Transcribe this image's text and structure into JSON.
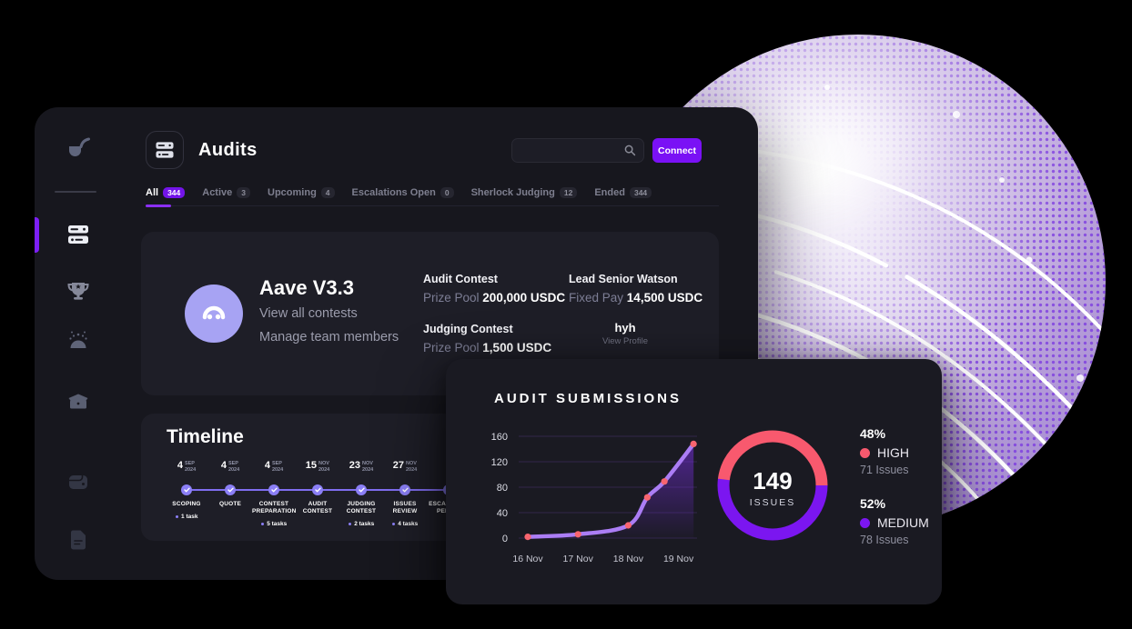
{
  "header": {
    "title": "Audits",
    "connect_label": "Connect",
    "search_placeholder": ""
  },
  "sidebar": {
    "items": [
      "pipe-logo",
      "audits",
      "trophy",
      "community",
      "toolbox",
      "wallet",
      "document"
    ]
  },
  "tabs": [
    {
      "label": "All",
      "count": "344"
    },
    {
      "label": "Active",
      "count": "3"
    },
    {
      "label": "Upcoming",
      "count": "4"
    },
    {
      "label": "Escalations Open",
      "count": "0"
    },
    {
      "label": "Sherlock Judging",
      "count": "12"
    },
    {
      "label": "Ended",
      "count": "344"
    }
  ],
  "project": {
    "name": "Aave V3.3",
    "link_contests": "View all contests",
    "link_members": "Manage team members",
    "audit_contest_title": "Audit Contest",
    "audit_prize_label": "Prize Pool",
    "audit_prize_value": "200,000 USDC",
    "judging_contest_title": "Judging Contest",
    "judging_prize_label": "Prize Pool",
    "judging_prize_value": "1,500 USDC",
    "watson_title": "Lead Senior Watson",
    "watson_pay_label": "Fixed Pay",
    "watson_pay_value": "14,500 USDC",
    "watson_name": "hyh",
    "watson_link": "View Profile"
  },
  "timeline": {
    "title": "Timeline",
    "milestones": [
      {
        "day": "4",
        "month": "SEP",
        "year": "2024",
        "label": "SCOPING",
        "tasks": "1 task"
      },
      {
        "day": "4",
        "month": "SEP",
        "year": "2024",
        "label": "QUOTE",
        "tasks": ""
      },
      {
        "day": "4",
        "month": "SEP",
        "year": "2024",
        "label": "CONTEST PREPARATION",
        "tasks": "5 tasks"
      },
      {
        "day": "15",
        "month": "NOV",
        "year": "2024",
        "label": "AUDIT CONTEST",
        "tasks": ""
      },
      {
        "day": "23",
        "month": "NOV",
        "year": "2024",
        "label": "JUDGING CONTEST",
        "tasks": "2 tasks"
      },
      {
        "day": "27",
        "month": "NOV",
        "year": "2024",
        "label": "ISSUES REVIEW",
        "tasks": "4 tasks"
      },
      {
        "day": "",
        "month": "",
        "year": "",
        "label": "ESCALATION PERIOD",
        "tasks": ""
      }
    ]
  },
  "submissions": {
    "title": "AUDIT SUBMISSIONS"
  },
  "chart_data": [
    {
      "type": "area",
      "title": "AUDIT SUBMISSIONS",
      "x_unit": "days from 16 Nov",
      "x": [
        0,
        1,
        2,
        2.38,
        2.72,
        3.3
      ],
      "values": [
        2,
        6,
        20,
        64,
        89,
        148
      ],
      "xtick_labels": [
        "16 Nov",
        "17 Nov",
        "18 Nov",
        "19 Nov"
      ],
      "yticks": [
        0,
        40,
        80,
        120,
        160
      ],
      "ylim": [
        0,
        160
      ],
      "grid": "horizontal",
      "line_color": "#ab7df5",
      "point_color": "#f8656f",
      "area_color": "#7a2fe6"
    },
    {
      "type": "donut",
      "center_value": "149",
      "center_label": "ISSUES",
      "segments": [
        {
          "name": "HIGH",
          "pct": 48,
          "pct_label": "48%",
          "issues_label": "71 Issues",
          "color": "#f8596e"
        },
        {
          "name": "MEDIUM",
          "pct": 52,
          "pct_label": "52%",
          "issues_label": "78 Issues",
          "color": "#7b16f0"
        }
      ]
    }
  ],
  "colors": {
    "accent_purple": "#7a11f5",
    "window_bg": "#17171e",
    "card_bg": "#1e1e27",
    "panel_bg": "#1a1a22",
    "timeline_node": "#8b7ff6",
    "aave_logo_bg": "#a7a3f3"
  }
}
